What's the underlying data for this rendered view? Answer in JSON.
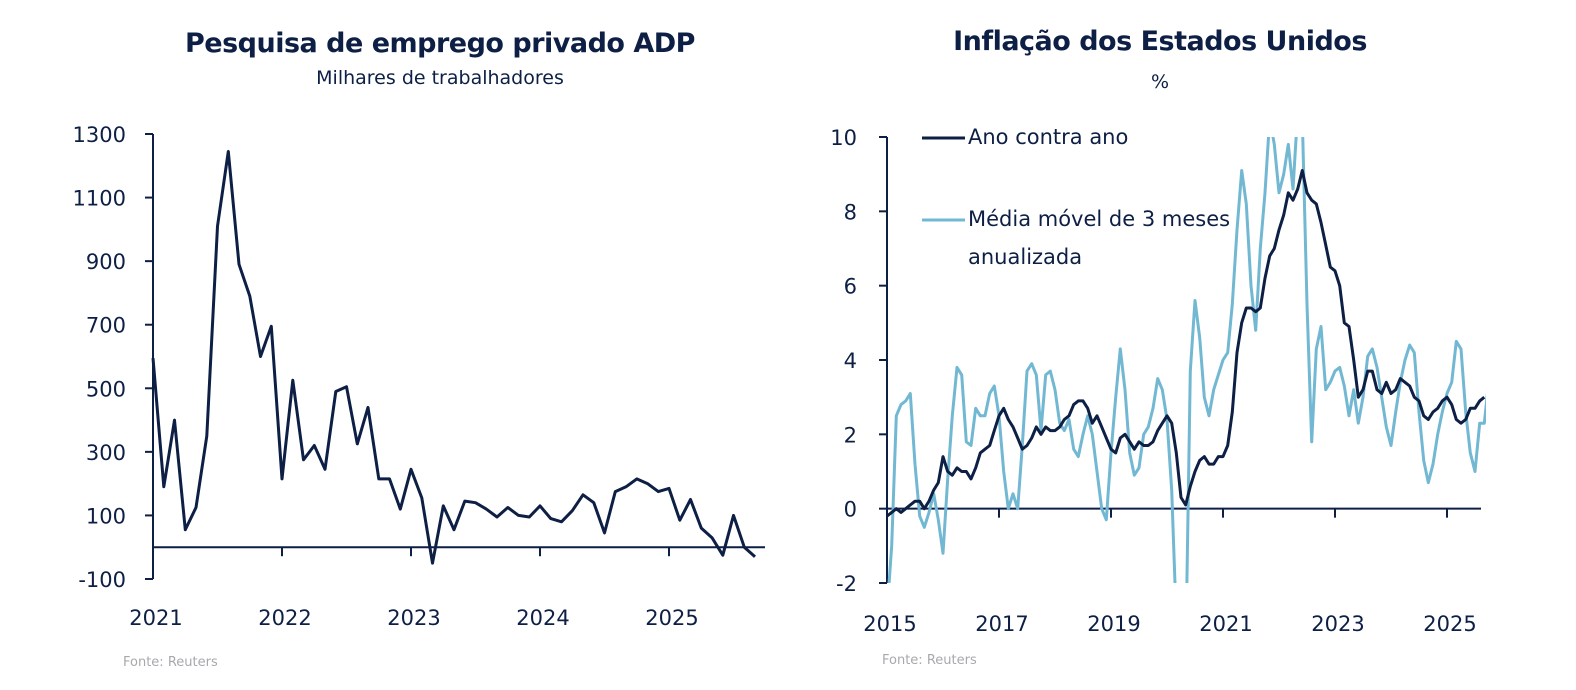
{
  "colors": {
    "navy": "#0d1f45",
    "light_blue": "#72b8d3",
    "source_gray": "#a9a9ad"
  },
  "chart_data": [
    {
      "type": "line",
      "title": "Pesquisa de emprego privado ADP",
      "subtitle": "Milhares de trabalhadores",
      "source": "Fonte: Reuters",
      "xlabel": "",
      "ylabel": "",
      "ylim": [
        -100,
        1300
      ],
      "yticks": [
        "1300",
        "1100",
        "900",
        "700",
        "500",
        "300",
        "100",
        "-100"
      ],
      "ytick_values": [
        1300,
        1100,
        900,
        700,
        500,
        300,
        100,
        -100
      ],
      "xticks": [
        "2021",
        "2022",
        "2023",
        "2024",
        "2025"
      ],
      "xtick_values": [
        2021,
        2022,
        2023,
        2024,
        2025
      ],
      "x_start": "2021-01",
      "grid": false,
      "legend": "none",
      "series": [
        {
          "name": "ADP",
          "color": "#0d1f45",
          "values": [
            595,
            190,
            400,
            55,
            125,
            350,
            1010,
            1245,
            890,
            790,
            600,
            695,
            215,
            525,
            275,
            320,
            245,
            490,
            505,
            325,
            440,
            215,
            215,
            120,
            245,
            155,
            -50,
            130,
            55,
            145,
            140,
            120,
            95,
            125,
            100,
            95,
            130,
            90,
            80,
            115,
            165,
            140,
            45,
            175,
            190,
            215,
            200,
            175,
            185,
            85,
            150,
            60,
            30,
            -25,
            100,
            0,
            -30
          ]
        }
      ]
    },
    {
      "type": "line",
      "title": "Inflação dos Estados Unidos",
      "subtitle": "%",
      "source": "Fonte: Reuters",
      "xlabel": "",
      "ylabel": "",
      "ylim": [
        -2,
        10
      ],
      "yticks": [
        "10",
        "8",
        "6",
        "4",
        "2",
        "0",
        "-2"
      ],
      "ytick_values": [
        10,
        8,
        6,
        4,
        2,
        0,
        -2
      ],
      "xticks": [
        "2015",
        "2017",
        "2019",
        "2021",
        "2023",
        "2025"
      ],
      "xtick_values": [
        2015,
        2017,
        2019,
        2021,
        2023,
        2025
      ],
      "x_start": "2015-01",
      "grid": false,
      "legend": "top-left",
      "series": [
        {
          "name": "Ano contra ano",
          "color": "#0d1f45",
          "values": [
            -0.2,
            -0.1,
            0.0,
            -0.1,
            0.0,
            0.1,
            0.2,
            0.2,
            0.0,
            0.2,
            0.5,
            0.7,
            1.4,
            1.0,
            0.9,
            1.1,
            1.0,
            1.0,
            0.8,
            1.1,
            1.5,
            1.6,
            1.7,
            2.1,
            2.5,
            2.7,
            2.4,
            2.2,
            1.9,
            1.6,
            1.7,
            1.9,
            2.2,
            2.0,
            2.2,
            2.1,
            2.1,
            2.2,
            2.4,
            2.5,
            2.8,
            2.9,
            2.9,
            2.7,
            2.3,
            2.5,
            2.2,
            1.9,
            1.6,
            1.5,
            1.9,
            2.0,
            1.8,
            1.6,
            1.8,
            1.7,
            1.7,
            1.8,
            2.1,
            2.3,
            2.5,
            2.3,
            1.5,
            0.3,
            0.1,
            0.6,
            1.0,
            1.3,
            1.4,
            1.2,
            1.2,
            1.4,
            1.4,
            1.7,
            2.6,
            4.2,
            5.0,
            5.4,
            5.4,
            5.3,
            5.4,
            6.2,
            6.8,
            7.0,
            7.5,
            7.9,
            8.5,
            8.3,
            8.6,
            9.1,
            8.5,
            8.3,
            8.2,
            7.7,
            7.1,
            6.5,
            6.4,
            6.0,
            5.0,
            4.9,
            4.0,
            3.0,
            3.2,
            3.7,
            3.7,
            3.2,
            3.1,
            3.4,
            3.1,
            3.2,
            3.5,
            3.4,
            3.3,
            3.0,
            2.9,
            2.5,
            2.4,
            2.6,
            2.7,
            2.9,
            3.0,
            2.8,
            2.4,
            2.3,
            2.4,
            2.7,
            2.7,
            2.9,
            3.0
          ]
        },
        {
          "name": "Média móvel de 3 meses anualizada",
          "color": "#72b8d3",
          "values": [
            -2.8,
            -1.0,
            2.5,
            2.8,
            2.9,
            3.1,
            1.2,
            -0.2,
            -0.5,
            -0.1,
            0.4,
            -0.3,
            -1.2,
            0.8,
            2.5,
            3.8,
            3.6,
            1.8,
            1.7,
            2.7,
            2.5,
            2.5,
            3.1,
            3.3,
            2.5,
            1.0,
            0.0,
            0.4,
            0.0,
            1.7,
            3.7,
            3.9,
            3.6,
            2.1,
            3.6,
            3.7,
            3.2,
            2.3,
            2.1,
            2.4,
            1.6,
            1.4,
            2.0,
            2.5,
            2.0,
            1.0,
            0.0,
            -0.3,
            1.5,
            3.0,
            4.3,
            3.2,
            1.5,
            0.9,
            1.1,
            2.0,
            2.2,
            2.7,
            3.5,
            3.2,
            2.4,
            0.5,
            -3.0,
            -5.5,
            -4.0,
            3.7,
            5.6,
            4.6,
            3.0,
            2.5,
            3.2,
            3.6,
            4.0,
            4.2,
            5.5,
            7.5,
            9.1,
            8.2,
            6.0,
            4.8,
            7.0,
            8.5,
            10.5,
            9.8,
            8.5,
            9.0,
            9.8,
            8.6,
            10.7,
            10.5,
            5.5,
            1.8,
            4.3,
            4.9,
            3.2,
            3.4,
            3.7,
            3.8,
            3.3,
            2.5,
            3.2,
            2.3,
            3.0,
            4.1,
            4.3,
            3.8,
            3.0,
            2.2,
            1.7,
            2.6,
            3.4,
            4.0,
            4.4,
            4.2,
            2.6,
            1.3,
            0.7,
            1.2,
            2.0,
            2.6,
            3.1,
            3.4,
            4.5,
            4.3,
            2.6,
            1.5,
            1.0,
            2.3,
            2.3,
            3.5,
            3.6
          ]
        }
      ]
    }
  ]
}
